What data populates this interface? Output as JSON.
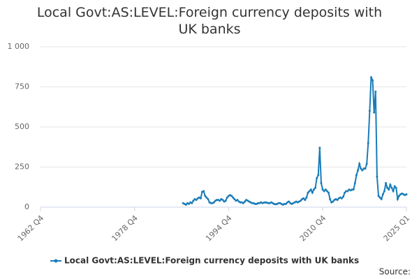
{
  "chart_data": {
    "type": "line",
    "title": "Local Govt:AS:LEVEL:Foreign currency deposits with UK banks",
    "source": "Source:",
    "xlim": [
      "1962 Q4",
      "2025 Q1"
    ],
    "xticks": [
      "1962 Q4",
      "1978 Q4",
      "1994 Q4",
      "2010 Q4",
      "2025 Q1"
    ],
    "ylim": [
      0,
      1000
    ],
    "yticks": [
      0,
      250,
      500,
      750,
      {
        "value": 1000,
        "label": "1 000"
      }
    ],
    "grid": true,
    "x": [
      "1987 Q1",
      "1987 Q2",
      "1987 Q3",
      "1987 Q4",
      "1988 Q1",
      "1988 Q2",
      "1988 Q3",
      "1988 Q4",
      "1989 Q1",
      "1989 Q2",
      "1989 Q3",
      "1989 Q4",
      "1990 Q1",
      "1990 Q2",
      "1990 Q3",
      "1990 Q4",
      "1991 Q1",
      "1991 Q2",
      "1991 Q3",
      "1991 Q4",
      "1992 Q1",
      "1992 Q2",
      "1992 Q3",
      "1992 Q4",
      "1993 Q1",
      "1993 Q2",
      "1993 Q3",
      "1993 Q4",
      "1994 Q1",
      "1994 Q2",
      "1994 Q3",
      "1994 Q4",
      "1995 Q1",
      "1995 Q2",
      "1995 Q3",
      "1995 Q4",
      "1996 Q1",
      "1996 Q2",
      "1996 Q3",
      "1996 Q4",
      "1997 Q1",
      "1997 Q2",
      "1997 Q3",
      "1997 Q4",
      "1998 Q1",
      "1998 Q2",
      "1998 Q3",
      "1998 Q4",
      "1999 Q1",
      "1999 Q2",
      "1999 Q3",
      "1999 Q4",
      "2000 Q1",
      "2000 Q2",
      "2000 Q3",
      "2000 Q4",
      "2001 Q1",
      "2001 Q2",
      "2001 Q3",
      "2001 Q4",
      "2002 Q1",
      "2002 Q2",
      "2002 Q3",
      "2002 Q4",
      "2003 Q1",
      "2003 Q2",
      "2003 Q3",
      "2003 Q4",
      "2004 Q1",
      "2004 Q2",
      "2004 Q3",
      "2004 Q4",
      "2005 Q1",
      "2005 Q2",
      "2005 Q3",
      "2005 Q4",
      "2006 Q1",
      "2006 Q2",
      "2006 Q3",
      "2006 Q4",
      "2007 Q1",
      "2007 Q2",
      "2007 Q3",
      "2007 Q4",
      "2008 Q1",
      "2008 Q2",
      "2008 Q3",
      "2008 Q4",
      "2009 Q1",
      "2009 Q2",
      "2009 Q3",
      "2009 Q4",
      "2010 Q1",
      "2010 Q2",
      "2010 Q3",
      "2010 Q4",
      "2011 Q1",
      "2011 Q2",
      "2011 Q3",
      "2011 Q4",
      "2012 Q1",
      "2012 Q2",
      "2012 Q3",
      "2012 Q4",
      "2013 Q1",
      "2013 Q2",
      "2013 Q3",
      "2013 Q4",
      "2014 Q1",
      "2014 Q2",
      "2014 Q3",
      "2014 Q4",
      "2015 Q1",
      "2015 Q2",
      "2015 Q3",
      "2015 Q4",
      "2016 Q1",
      "2016 Q2",
      "2016 Q3",
      "2016 Q4",
      "2017 Q1",
      "2017 Q2",
      "2017 Q3",
      "2017 Q4",
      "2018 Q1",
      "2018 Q2",
      "2018 Q3",
      "2018 Q4",
      "2019 Q1",
      "2019 Q2",
      "2019 Q3",
      "2019 Q4",
      "2020 Q1",
      "2020 Q2",
      "2020 Q3",
      "2020 Q4",
      "2021 Q1",
      "2021 Q2",
      "2021 Q3",
      "2021 Q4",
      "2022 Q1",
      "2022 Q2",
      "2022 Q3",
      "2022 Q4",
      "2023 Q1",
      "2023 Q2",
      "2023 Q3",
      "2023 Q4",
      "2024 Q1",
      "2024 Q2",
      "2024 Q3",
      "2024 Q4",
      "2025 Q1"
    ],
    "series": [
      {
        "name": "Local Govt:AS:LEVEL:Foreign currency deposits with UK banks",
        "color": "#1a7cb9",
        "values": [
          25,
          20,
          15,
          25,
          20,
          30,
          25,
          40,
          50,
          45,
          55,
          60,
          55,
          95,
          100,
          70,
          60,
          50,
          30,
          25,
          25,
          30,
          40,
          45,
          45,
          40,
          50,
          45,
          35,
          40,
          60,
          70,
          75,
          70,
          60,
          50,
          40,
          45,
          35,
          30,
          30,
          25,
          35,
          45,
          40,
          35,
          30,
          25,
          25,
          20,
          20,
          25,
          25,
          30,
          25,
          28,
          30,
          28,
          25,
          25,
          30,
          25,
          20,
          18,
          20,
          25,
          25,
          20,
          15,
          20,
          20,
          30,
          35,
          25,
          20,
          25,
          30,
          35,
          30,
          35,
          40,
          50,
          55,
          45,
          60,
          90,
          100,
          110,
          90,
          110,
          120,
          180,
          200,
          370,
          150,
          110,
          100,
          110,
          100,
          90,
          50,
          30,
          35,
          45,
          50,
          45,
          55,
          60,
          55,
          65,
          90,
          100,
          100,
          110,
          105,
          110,
          110,
          150,
          200,
          230,
          270,
          240,
          230,
          240,
          240,
          270,
          400,
          600,
          810,
          790,
          590,
          720,
          190,
          70,
          60,
          50,
          80,
          100,
          150,
          120,
          110,
          140,
          120,
          100,
          130,
          120,
          50,
          70,
          80,
          85,
          80,
          75,
          80
        ]
      }
    ]
  }
}
